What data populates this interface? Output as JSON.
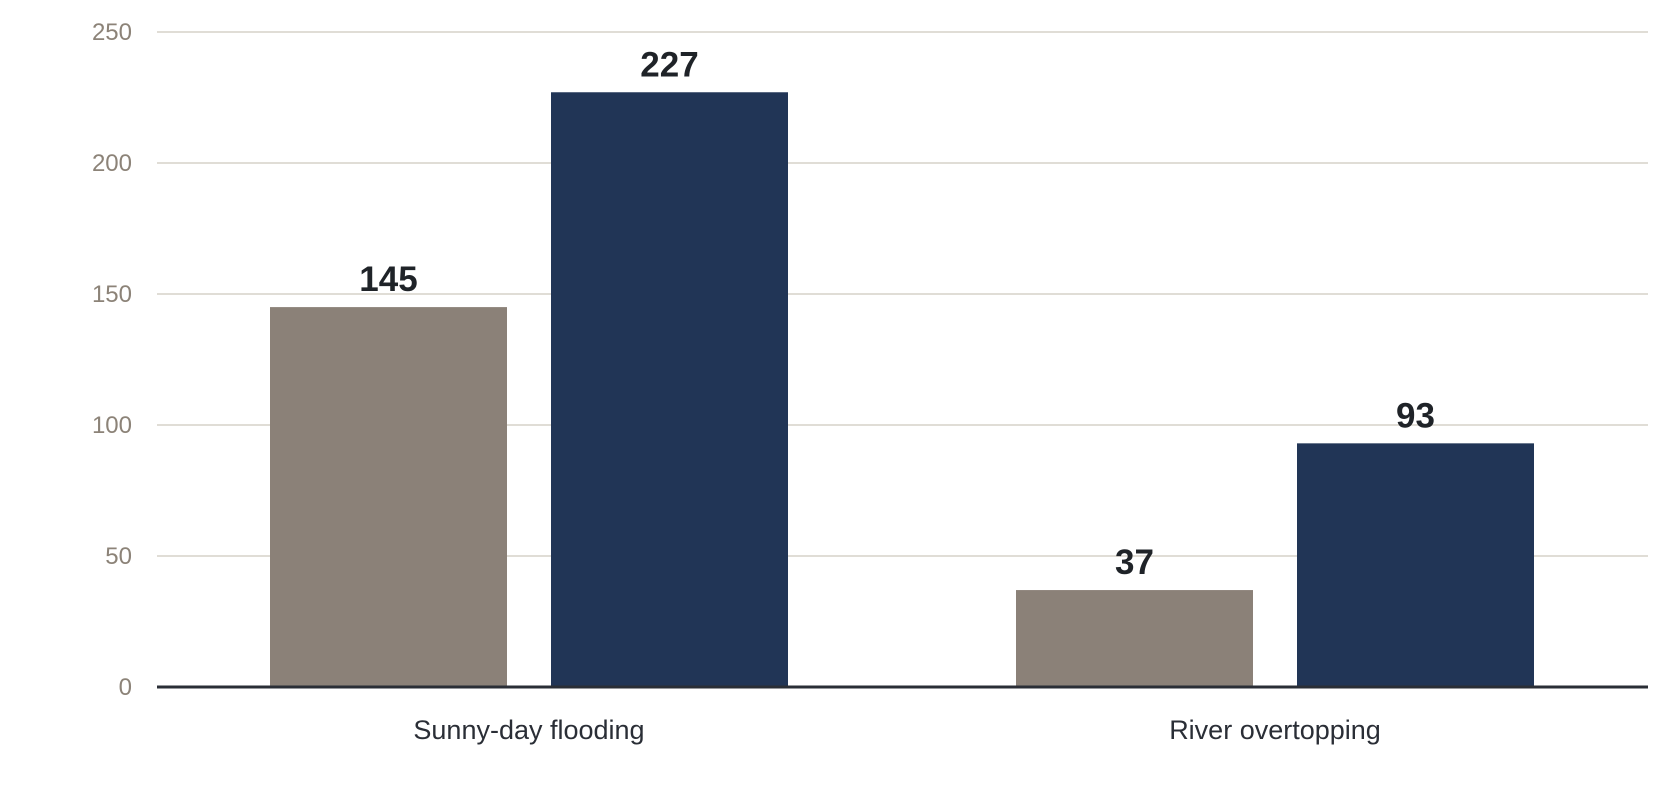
{
  "chart_data": {
    "type": "bar",
    "title": "",
    "xlabel": "",
    "ylabel": "",
    "categories": [
      "Sunny-day flooding",
      "River overtopping"
    ],
    "series": [
      {
        "values": [
          145,
          37
        ],
        "color": "#8b8178"
      },
      {
        "values": [
          227,
          93
        ],
        "color": "#213556"
      }
    ],
    "ylim": [
      0,
      250
    ],
    "yticks": [
      0,
      50,
      100,
      150,
      200,
      250
    ],
    "grid": true,
    "legend": "none",
    "colors": {
      "grid": "#e0ddd6",
      "axis": "#2a2e36",
      "tick_text": "#8c8378",
      "category_text": "#2a2e36",
      "data_label_text": "#1f2328"
    }
  }
}
